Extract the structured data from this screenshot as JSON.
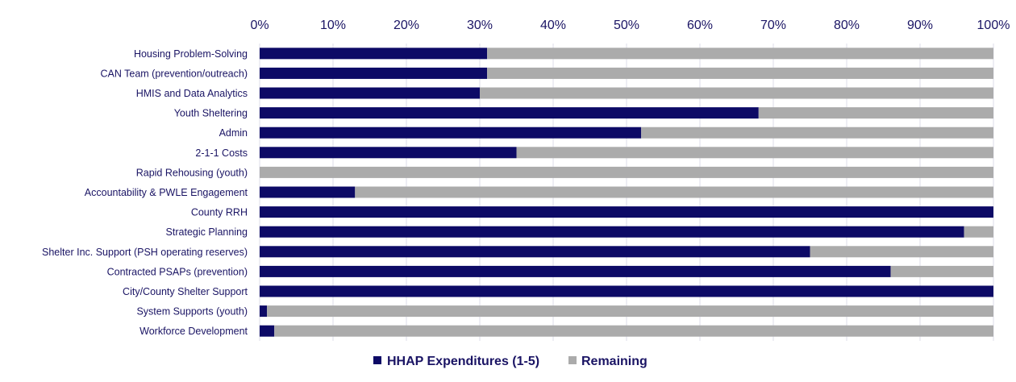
{
  "chart_data": {
    "type": "bar",
    "orientation": "horizontal",
    "stacked": true,
    "percent_axis": true,
    "axis_position": "top",
    "grid": true,
    "legend_position": "bottom",
    "title": "",
    "xlabel": "",
    "ylabel": "",
    "xlim": [
      0,
      100
    ],
    "tick_labels": [
      "0%",
      "10%",
      "20%",
      "30%",
      "40%",
      "50%",
      "60%",
      "70%",
      "80%",
      "90%",
      "100%"
    ],
    "categories": [
      "Housing Problem-Solving",
      "CAN Team (prevention/outreach)",
      "HMIS and Data Analytics",
      "Youth Sheltering",
      "Admin",
      "2-1-1 Costs",
      "Rapid Rehousing (youth)",
      "Accountability & PWLE Engagement",
      "County RRH",
      "Strategic Planning",
      "Shelter Inc. Support (PSH operating reserves)",
      "Contracted PSAPs (prevention)",
      "City/County Shelter Support",
      "System Supports (youth)",
      "Workforce Development"
    ],
    "series": [
      {
        "name": "HHAP Expenditures (1-5)",
        "color": "#0d0a66",
        "values": [
          31,
          31,
          30,
          68,
          52,
          35,
          0,
          13,
          100,
          96,
          75,
          86,
          100,
          1,
          2
        ]
      },
      {
        "name": "Remaining",
        "color": "#ababab",
        "values": [
          69,
          69,
          70,
          32,
          48,
          65,
          100,
          87,
          0,
          4,
          25,
          14,
          0,
          99,
          98
        ]
      }
    ]
  }
}
